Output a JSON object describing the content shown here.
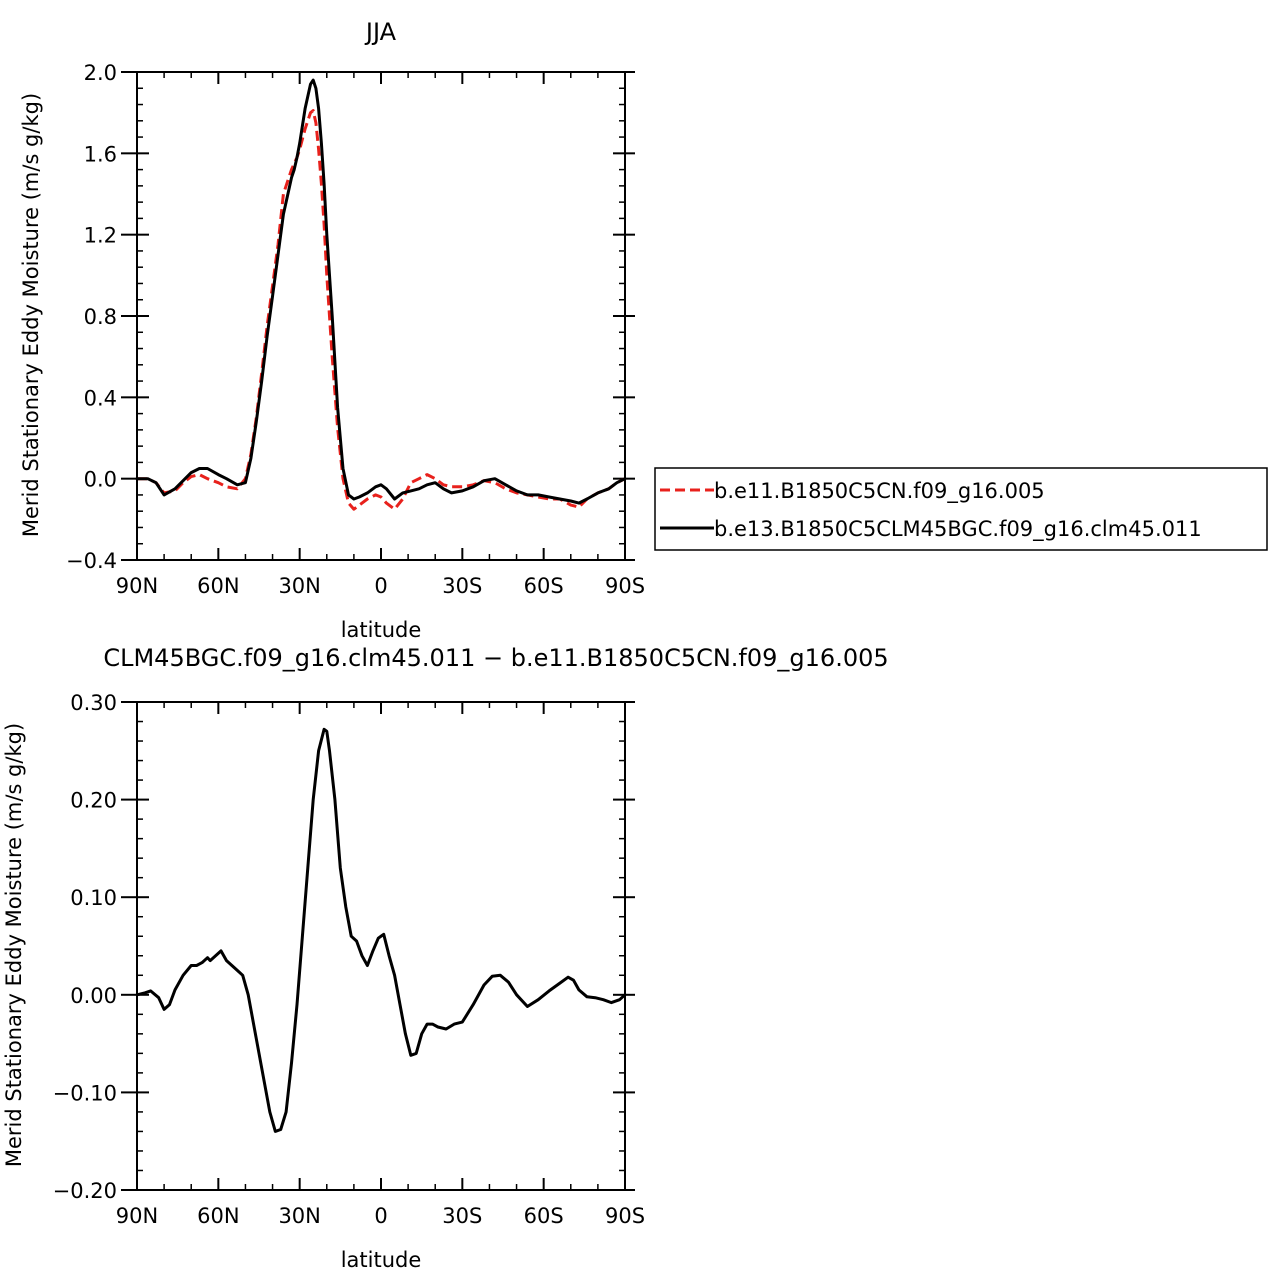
{
  "chart_data": [
    {
      "type": "line",
      "title": "JJA",
      "xlabel": "latitude",
      "ylabel": "Merid Stationary Eddy Moisture (m/s g/kg)",
      "xlim": [
        90,
        -90
      ],
      "ylim": [
        -0.4,
        2.0
      ],
      "x_ticks": [
        90,
        60,
        30,
        0,
        -30,
        -60,
        -90
      ],
      "x_tick_labels": [
        "90N",
        "60N",
        "30N",
        "0",
        "30S",
        "60S",
        "90S"
      ],
      "y_ticks": [
        -0.4,
        0.0,
        0.4,
        0.8,
        1.2,
        1.6,
        2.0
      ],
      "y_tick_labels": [
        "−0.4",
        "0.0",
        "0.4",
        "0.8",
        "1.2",
        "1.6",
        "2.0"
      ],
      "legend_position": "right",
      "series": [
        {
          "name": "b.e11.B1850C5CN.f09_g16.005",
          "color": "#e8211c",
          "dash": "dashed",
          "x": [
            90,
            86,
            83,
            80,
            76,
            73,
            70,
            67,
            64,
            60,
            57,
            53,
            50,
            48,
            46,
            44,
            42,
            40,
            38,
            36,
            34,
            33,
            32,
            31,
            30,
            28,
            26,
            25,
            24,
            23,
            22,
            21,
            20,
            18,
            16,
            14,
            12,
            10,
            8,
            5,
            2,
            0,
            -2,
            -5,
            -8,
            -11,
            -14,
            -17,
            -20,
            -23,
            -26,
            -30,
            -34,
            -38,
            -42,
            -46,
            -50,
            -54,
            -58,
            -62,
            -66,
            -70,
            -73,
            -76,
            -80,
            -84,
            -87,
            -90
          ],
          "y": [
            0.0,
            0.0,
            -0.02,
            -0.07,
            -0.06,
            -0.02,
            0.01,
            0.02,
            0.0,
            -0.02,
            -0.04,
            -0.05,
            0.0,
            0.12,
            0.3,
            0.52,
            0.75,
            0.95,
            1.15,
            1.4,
            1.48,
            1.52,
            1.55,
            1.58,
            1.62,
            1.72,
            1.8,
            1.81,
            1.75,
            1.62,
            1.45,
            1.25,
            1.0,
            0.6,
            0.25,
            0.0,
            -0.12,
            -0.15,
            -0.13,
            -0.1,
            -0.08,
            -0.09,
            -0.12,
            -0.15,
            -0.1,
            -0.02,
            0.0,
            0.02,
            0.0,
            -0.03,
            -0.04,
            -0.04,
            -0.03,
            -0.01,
            -0.02,
            -0.05,
            -0.07,
            -0.08,
            -0.09,
            -0.1,
            -0.1,
            -0.13,
            -0.14,
            -0.1,
            -0.07,
            -0.05,
            -0.02,
            0.0
          ]
        },
        {
          "name": "b.e13.B1850C5CLM45BGC.f09_g16.clm45.011",
          "color": "#000000",
          "dash": "solid",
          "x": [
            90,
            86,
            83,
            80,
            76,
            73,
            70,
            67,
            64,
            60,
            57,
            53,
            50,
            48,
            46,
            44,
            42,
            40,
            38,
            36,
            34,
            33,
            32,
            31,
            30,
            28,
            26,
            25,
            24,
            23,
            22,
            21,
            20,
            18,
            16,
            14,
            12,
            10,
            8,
            5,
            2,
            0,
            -2,
            -5,
            -8,
            -11,
            -14,
            -17,
            -20,
            -23,
            -26,
            -30,
            -34,
            -38,
            -42,
            -46,
            -50,
            -54,
            -58,
            -62,
            -66,
            -70,
            -73,
            -76,
            -80,
            -84,
            -87,
            -90
          ],
          "y": [
            0.0,
            0.0,
            -0.02,
            -0.08,
            -0.05,
            -0.01,
            0.03,
            0.05,
            0.05,
            0.02,
            0.0,
            -0.03,
            -0.02,
            0.1,
            0.28,
            0.48,
            0.7,
            0.9,
            1.1,
            1.3,
            1.42,
            1.48,
            1.52,
            1.58,
            1.65,
            1.82,
            1.94,
            1.96,
            1.92,
            1.82,
            1.65,
            1.45,
            1.2,
            0.8,
            0.35,
            0.05,
            -0.08,
            -0.1,
            -0.09,
            -0.07,
            -0.04,
            -0.03,
            -0.05,
            -0.1,
            -0.07,
            -0.06,
            -0.05,
            -0.03,
            -0.02,
            -0.05,
            -0.07,
            -0.06,
            -0.04,
            -0.01,
            0.0,
            -0.03,
            -0.06,
            -0.08,
            -0.08,
            -0.09,
            -0.1,
            -0.11,
            -0.12,
            -0.1,
            -0.07,
            -0.05,
            -0.02,
            0.0
          ]
        }
      ]
    },
    {
      "type": "line",
      "title": "CLM45BGC.f09_g16.clm45.011 − b.e11.B1850C5CN.f09_g16.005",
      "xlabel": "latitude",
      "ylabel": "Merid Stationary Eddy Moisture (m/s g/kg)",
      "xlim": [
        90,
        -90
      ],
      "ylim": [
        -0.2,
        0.3
      ],
      "x_ticks": [
        90,
        60,
        30,
        0,
        -30,
        -60,
        -90
      ],
      "x_tick_labels": [
        "90N",
        "60N",
        "30N",
        "0",
        "30S",
        "60S",
        "90S"
      ],
      "y_ticks": [
        -0.2,
        -0.1,
        0.0,
        0.1,
        0.2,
        0.3
      ],
      "y_tick_labels": [
        "−0.20",
        "−0.10",
        "0.00",
        "0.10",
        "0.20",
        "0.30"
      ],
      "series": [
        {
          "color": "#000000",
          "dash": "solid",
          "x": [
            90,
            87,
            85,
            82,
            80,
            78,
            76,
            73,
            70,
            68,
            66,
            64,
            63,
            61,
            59,
            57,
            55,
            53,
            51,
            49,
            47,
            45,
            43,
            41,
            39,
            37,
            35,
            33,
            31,
            29,
            27,
            25,
            23,
            21,
            20,
            19,
            17,
            15,
            13,
            11,
            9,
            7,
            5,
            3,
            1,
            -1,
            -3,
            -5,
            -7,
            -9,
            -11,
            -13,
            -15,
            -17,
            -19,
            -21,
            -24,
            -27,
            -30,
            -34,
            -38,
            -41,
            -44,
            -47,
            -50,
            -54,
            -58,
            -62,
            -66,
            -69,
            -71,
            -73,
            -76,
            -79,
            -82,
            -85,
            -88,
            -90
          ],
          "y": [
            0.0,
            0.002,
            0.004,
            -0.003,
            -0.015,
            -0.01,
            0.005,
            0.02,
            0.03,
            0.03,
            0.033,
            0.038,
            0.035,
            0.04,
            0.045,
            0.035,
            0.03,
            0.025,
            0.02,
            0.0,
            -0.03,
            -0.06,
            -0.09,
            -0.12,
            -0.14,
            -0.138,
            -0.12,
            -0.07,
            -0.01,
            0.06,
            0.13,
            0.2,
            0.25,
            0.272,
            0.27,
            0.25,
            0.2,
            0.13,
            0.09,
            0.06,
            0.055,
            0.04,
            0.03,
            0.045,
            0.058,
            0.062,
            0.04,
            0.02,
            -0.01,
            -0.04,
            -0.062,
            -0.06,
            -0.04,
            -0.03,
            -0.03,
            -0.033,
            -0.035,
            -0.03,
            -0.028,
            -0.01,
            0.01,
            0.019,
            0.02,
            0.013,
            0.0,
            -0.012,
            -0.005,
            0.004,
            0.012,
            0.018,
            0.015,
            0.005,
            -0.002,
            -0.003,
            -0.005,
            -0.008,
            -0.005,
            0.0
          ]
        }
      ]
    }
  ]
}
